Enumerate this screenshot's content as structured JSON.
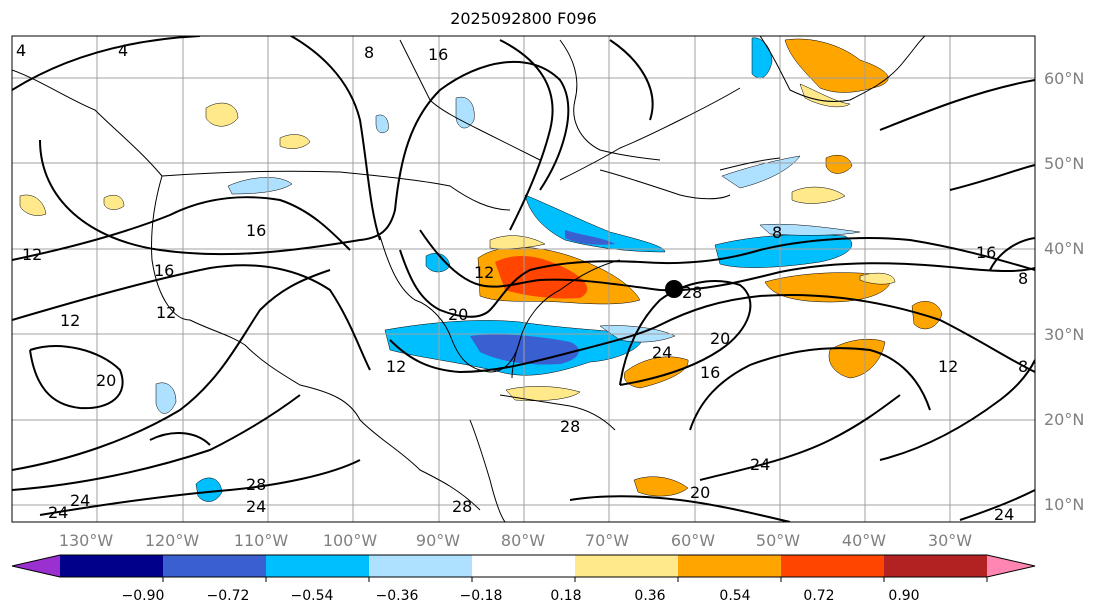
{
  "title": "2025092800 F096",
  "longitude_ticks": [
    "130°W",
    "120°W",
    "110°W",
    "100°W",
    "90°W",
    "80°W",
    "70°W",
    "60°W",
    "50°W",
    "40°W",
    "30°W"
  ],
  "latitude_ticks": [
    "60°N",
    "50°N",
    "40°N",
    "30°N",
    "20°N",
    "10°N"
  ],
  "colorbar": {
    "tick_labels": [
      "−0.90",
      "−0.72",
      "−0.54",
      "−0.36",
      "−0.18",
      "0.18",
      "0.36",
      "0.54",
      "0.72",
      "0.90"
    ],
    "colors": [
      "#9b30d0",
      "#00008b",
      "#3a5fd0",
      "#00bfff",
      "#aee0ff",
      "#ffffff",
      "#ffe98a",
      "#ffa500",
      "#ff4500",
      "#b22222",
      "#ff85b3"
    ]
  },
  "contour_labels": [
    "4",
    "4",
    "8",
    "16",
    "16",
    "12",
    "16",
    "12",
    "12",
    "12",
    "20",
    "20",
    "16",
    "20",
    "24",
    "28",
    "12",
    "24",
    "28",
    "24",
    "24",
    "20",
    "8",
    "16",
    "8",
    "12",
    "8",
    "24",
    "28",
    "28",
    "24"
  ],
  "marker": {
    "name": "storm-center",
    "color": "#000000"
  }
}
